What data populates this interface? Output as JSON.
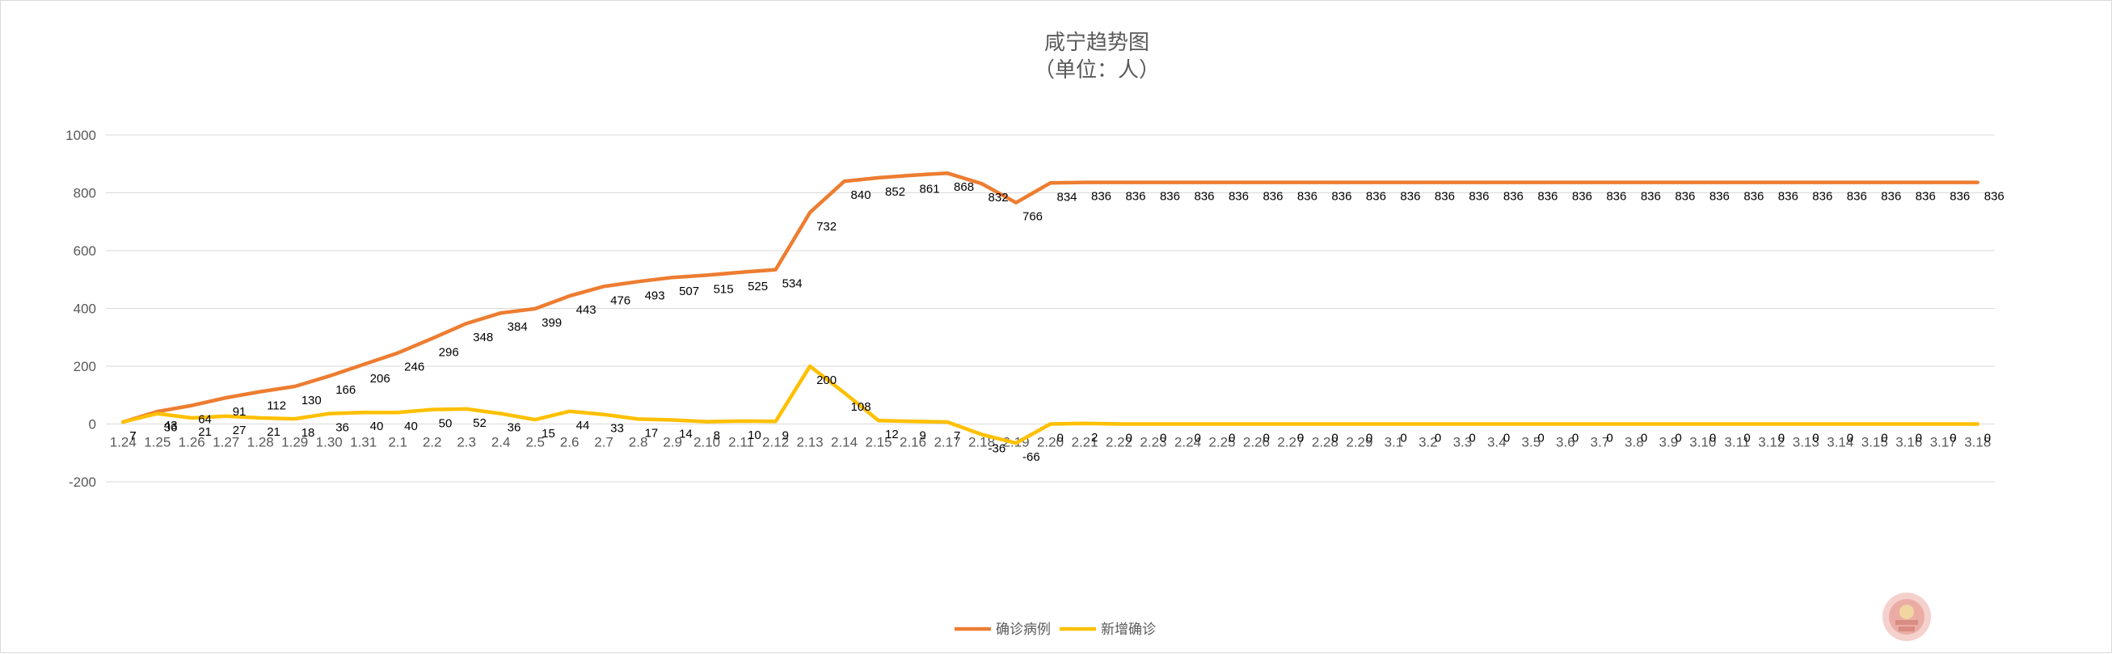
{
  "chart_data": {
    "type": "line",
    "title": "咸宁趋势图",
    "subtitle": "（单位：人）",
    "categories": [
      "1.24",
      "1.25",
      "1.26",
      "1.27",
      "1.28",
      "1.29",
      "1.30",
      "1.31",
      "2.1",
      "2.2",
      "2.3",
      "2.4",
      "2.5",
      "2.6",
      "2.7",
      "2.8",
      "2.9",
      "2.10",
      "2.11",
      "2.12",
      "2.13",
      "2.14",
      "2.15",
      "2.16",
      "2.17",
      "2.18",
      "2.19",
      "2.20",
      "2.21",
      "2.22",
      "2.23",
      "2.24",
      "2.25",
      "2.26",
      "2.27",
      "2.28",
      "2.29",
      "3.1",
      "3.2",
      "3.3",
      "3.4",
      "3.5",
      "3.6",
      "3.7",
      "3.8",
      "3.9",
      "3.10",
      "3.11",
      "3.12",
      "3.13",
      "3.14",
      "3.15",
      "3.16",
      "3.17",
      "3.18"
    ],
    "series": [
      {
        "name": "确诊病例",
        "color": "#ED7D31",
        "values": [
          7,
          43,
          64,
          91,
          112,
          130,
          166,
          206,
          246,
          296,
          348,
          384,
          399,
          443,
          476,
          493,
          507,
          515,
          525,
          534,
          732,
          840,
          852,
          861,
          868,
          832,
          766,
          834,
          836,
          836,
          836,
          836,
          836,
          836,
          836,
          836,
          836,
          836,
          836,
          836,
          836,
          836,
          836,
          836,
          836,
          836,
          836,
          836,
          836,
          836,
          836,
          836,
          836,
          836,
          836
        ]
      },
      {
        "name": "新增确诊",
        "color": "#FFC000",
        "values": [
          7,
          36,
          21,
          27,
          21,
          18,
          36,
          40,
          40,
          50,
          52,
          36,
          15,
          44,
          33,
          17,
          14,
          8,
          10,
          9,
          200,
          108,
          12,
          9,
          7,
          -36,
          -66,
          0,
          2,
          0,
          0,
          0,
          0,
          0,
          0,
          0,
          0,
          0,
          0,
          0,
          0,
          0,
          0,
          0,
          0,
          0,
          0,
          0,
          0,
          0,
          0,
          0,
          0,
          0,
          0
        ]
      }
    ],
    "ylim": [
      -200,
      1000
    ],
    "yticks": [
      -200,
      0,
      200,
      400,
      600,
      800,
      1000
    ],
    "grid": true,
    "legend": "bottom"
  }
}
